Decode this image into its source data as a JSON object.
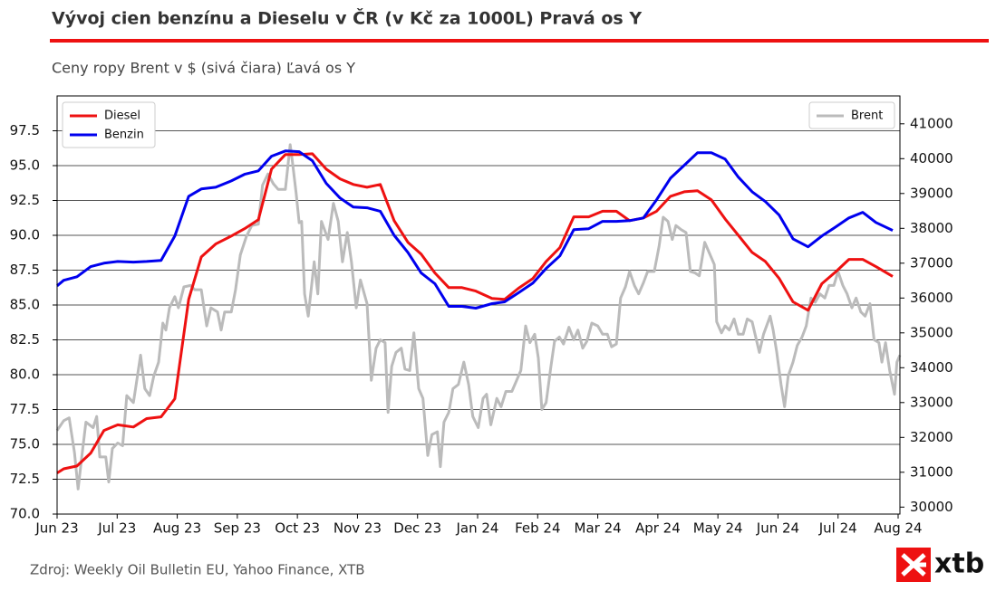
{
  "chart_data": {
    "type": "line",
    "title": "Vývoj cien benzínu a Dieselu v ČR (v Kč za 1000L) Pravá os Y",
    "subtitle": "Ceny ropy Brent v $ (sivá čiara) Ľavá os Y",
    "source": "Zdroj: Weekly Oil Bulletin EU, Yahoo Finance, XTB",
    "logo": "xtb",
    "xlim": [
      0,
      14.03
    ],
    "xticks": [
      {
        "value": 0,
        "label": "Jun 23"
      },
      {
        "value": 1,
        "label": "Jul 23"
      },
      {
        "value": 2,
        "label": "Aug 23"
      },
      {
        "value": 3,
        "label": "Sep 23"
      },
      {
        "value": 4,
        "label": "Oct 23"
      },
      {
        "value": 5,
        "label": "Nov 23"
      },
      {
        "value": 6,
        "label": "Dec 23"
      },
      {
        "value": 7,
        "label": "Jan 24"
      },
      {
        "value": 8,
        "label": "Feb 24"
      },
      {
        "value": 9,
        "label": "Mar 24"
      },
      {
        "value": 10,
        "label": "Apr 24"
      },
      {
        "value": 11,
        "label": "May 24"
      },
      {
        "value": 12,
        "label": "Jun 24"
      },
      {
        "value": 13,
        "label": "Jul 24"
      },
      {
        "value": 14,
        "label": "Aug 24"
      }
    ],
    "ylim": [
      70,
      100
    ],
    "yticks": [
      {
        "value": 70,
        "label": "70.0"
      },
      72.5,
      {
        "value": 75,
        "label": "75.0"
      },
      77.5,
      {
        "value": 80,
        "label": "80.0"
      },
      82.5,
      {
        "value": 85,
        "label": "85.0"
      },
      87.5,
      {
        "value": 90,
        "label": "90.0"
      },
      92.5,
      {
        "value": 95,
        "label": "95.0"
      },
      97.5
    ],
    "y2lim": [
      29800,
      41800
    ],
    "y2ticks": [
      30000,
      31000,
      32000,
      33000,
      34000,
      35000,
      36000,
      37000,
      38000,
      39000,
      40000,
      41000
    ],
    "grid": true,
    "legend": {
      "y2": "upper left",
      "y": "upper right"
    },
    "x": [
      0,
      0.11,
      0.33,
      0.56,
      0.78,
      1.01,
      1.27,
      1.49,
      1.73,
      1.96,
      2.19,
      2.4,
      2.64,
      2.9,
      3.12,
      3.35,
      3.57,
      3.8,
      4.03,
      4.25,
      4.48,
      4.71,
      4.93,
      5.16,
      5.38,
      5.61,
      5.84,
      6.06,
      6.29,
      6.52,
      6.74,
      6.97,
      7.24,
      7.45,
      7.68,
      7.92,
      8.14,
      8.37,
      8.6,
      8.85,
      9.08,
      9.31,
      9.53,
      9.76,
      9.98,
      10.21,
      10.44,
      10.66,
      10.89,
      11.12,
      11.34,
      11.57,
      11.79,
      12.02,
      12.25,
      12.5,
      12.73,
      12.96,
      13.18,
      13.41,
      13.63,
      13.91
    ],
    "series": [
      {
        "name": "Diesel",
        "color": "#ee1111",
        "axis": "y2",
        "values": [
          30980,
          31100,
          31180,
          31550,
          32200,
          32360,
          32300,
          32540,
          32590,
          33110,
          35960,
          37180,
          37550,
          37780,
          37990,
          38250,
          39700,
          40120,
          40120,
          40140,
          39700,
          39420,
          39260,
          39180,
          39260,
          38220,
          37600,
          37260,
          36720,
          36300,
          36300,
          36200,
          35990,
          35960,
          36280,
          36560,
          37050,
          37450,
          38330,
          38330,
          38490,
          38490,
          38220,
          38300,
          38490,
          38920,
          39050,
          39080,
          38820,
          38270,
          37800,
          37310,
          37050,
          36560,
          35890,
          35650,
          36410,
          36750,
          37110,
          37110,
          36900,
          36620
        ]
      },
      {
        "name": "Benzin",
        "color": "#0000ee",
        "axis": "y2",
        "values": [
          36350,
          36510,
          36610,
          36900,
          37000,
          37050,
          37030,
          37050,
          37080,
          37780,
          38920,
          39130,
          39180,
          39360,
          39550,
          39650,
          40070,
          40220,
          40200,
          39940,
          39290,
          38870,
          38610,
          38590,
          38490,
          37800,
          37310,
          36720,
          36410,
          35760,
          35760,
          35710,
          35840,
          35890,
          36150,
          36430,
          36850,
          37210,
          37960,
          37990,
          38200,
          38200,
          38220,
          38300,
          38820,
          39440,
          39810,
          40170,
          40170,
          39990,
          39470,
          39050,
          38770,
          38380,
          37700,
          37470,
          37780,
          38040,
          38300,
          38460,
          38170,
          37940
        ]
      },
      {
        "name": "Brent",
        "color": "#bbbbbb",
        "axis": "y",
        "x": [
          0,
          0.11,
          0.2,
          0.29,
          0.35,
          0.41,
          0.48,
          0.6,
          0.66,
          0.71,
          0.81,
          0.86,
          0.92,
          1.01,
          1.09,
          1.16,
          1.27,
          1.31,
          1.39,
          1.46,
          1.54,
          1.61,
          1.69,
          1.76,
          1.81,
          1.87,
          1.96,
          2.02,
          2.11,
          2.22,
          2.29,
          2.4,
          2.49,
          2.56,
          2.67,
          2.73,
          2.79,
          2.9,
          2.97,
          3.05,
          3.15,
          3.24,
          3.35,
          3.42,
          3.51,
          3.6,
          3.68,
          3.8,
          3.88,
          3.92,
          3.98,
          4.03,
          4.07,
          4.12,
          4.18,
          4.28,
          4.34,
          4.4,
          4.51,
          4.6,
          4.68,
          4.75,
          4.83,
          4.9,
          4.98,
          5.05,
          5.16,
          5.23,
          5.31,
          5.38,
          5.46,
          5.51,
          5.57,
          5.64,
          5.73,
          5.79,
          5.87,
          5.94,
          6.02,
          6.09,
          6.17,
          6.24,
          6.33,
          6.38,
          6.44,
          6.52,
          6.59,
          6.68,
          6.77,
          6.85,
          6.92,
          7.01,
          7.09,
          7.15,
          7.22,
          7.32,
          7.39,
          7.47,
          7.57,
          7.65,
          7.72,
          7.8,
          7.87,
          7.95,
          8.01,
          8.07,
          8.14,
          8.22,
          8.28,
          8.36,
          8.43,
          8.52,
          8.6,
          8.67,
          8.75,
          8.82,
          8.9,
          9.0,
          9.08,
          9.16,
          9.23,
          9.31,
          9.38,
          9.46,
          9.53,
          9.61,
          9.68,
          9.76,
          9.83,
          9.94,
          10.02,
          10.09,
          10.17,
          10.24,
          10.3,
          10.39,
          10.47,
          10.54,
          10.62,
          10.69,
          10.78,
          10.86,
          10.94,
          10.98,
          11.06,
          11.12,
          11.19,
          11.27,
          11.34,
          11.42,
          11.49,
          11.57,
          11.64,
          11.69,
          11.76,
          11.87,
          11.92,
          11.98,
          12.05,
          12.11,
          12.17,
          12.25,
          12.32,
          12.4,
          12.47,
          12.55,
          12.62,
          12.7,
          12.78,
          12.85,
          12.93,
          13.0,
          13.08,
          13.15,
          13.23,
          13.3,
          13.38,
          13.45,
          13.53,
          13.6,
          13.68,
          13.73,
          13.79,
          13.86,
          13.94,
          13.98,
          14.03
        ],
        "values": [
          76.0,
          76.7,
          76.9,
          74.4,
          71.8,
          74.1,
          76.6,
          76.2,
          77.0,
          74.1,
          74.1,
          72.3,
          74.7,
          75.1,
          74.9,
          78.5,
          78.0,
          79.1,
          81.4,
          79.0,
          78.5,
          79.9,
          80.9,
          83.7,
          83.2,
          84.8,
          85.6,
          84.8,
          86.3,
          86.4,
          86.1,
          86.1,
          83.5,
          84.8,
          84.5,
          83.2,
          84.5,
          84.5,
          86.1,
          88.6,
          89.9,
          90.7,
          90.8,
          93.6,
          94.4,
          93.7,
          93.3,
          93.3,
          96.5,
          95.2,
          93.0,
          90.9,
          91.0,
          85.8,
          84.2,
          88.1,
          85.8,
          91.0,
          89.7,
          92.3,
          91.0,
          88.1,
          90.2,
          88.1,
          84.8,
          86.8,
          85.1,
          79.6,
          81.9,
          82.5,
          82.3,
          77.3,
          80.6,
          81.6,
          81.9,
          80.4,
          80.3,
          83.0,
          79.0,
          78.3,
          74.2,
          75.7,
          75.9,
          73.4,
          76.6,
          77.3,
          79.0,
          79.3,
          80.9,
          79.3,
          77.0,
          76.2,
          78.3,
          78.6,
          76.4,
          78.3,
          77.7,
          78.8,
          78.8,
          79.6,
          80.3,
          83.5,
          82.3,
          82.9,
          81.2,
          77.5,
          78.0,
          80.6,
          82.4,
          82.7,
          82.2,
          83.4,
          82.5,
          83.2,
          81.9,
          82.4,
          83.7,
          83.5,
          82.9,
          82.9,
          82.0,
          82.2,
          85.5,
          86.3,
          87.4,
          86.4,
          85.8,
          86.6,
          87.4,
          87.4,
          89.2,
          91.3,
          91.0,
          89.7,
          90.7,
          90.4,
          90.2,
          87.4,
          87.3,
          87.1,
          89.5,
          88.7,
          87.9,
          83.8,
          83.0,
          83.5,
          83.2,
          84.0,
          82.9,
          82.9,
          84.0,
          83.8,
          82.5,
          81.6,
          82.9,
          84.2,
          83.2,
          81.6,
          79.3,
          77.7,
          79.9,
          80.9,
          82.1,
          82.7,
          83.5,
          85.5,
          85.2,
          85.8,
          85.5,
          86.4,
          86.4,
          87.4,
          86.4,
          85.8,
          84.8,
          85.5,
          84.5,
          84.2,
          85.1,
          82.5,
          82.3,
          80.9,
          82.3,
          80.3,
          78.6,
          80.9,
          81.4
        ]
      }
    ]
  }
}
